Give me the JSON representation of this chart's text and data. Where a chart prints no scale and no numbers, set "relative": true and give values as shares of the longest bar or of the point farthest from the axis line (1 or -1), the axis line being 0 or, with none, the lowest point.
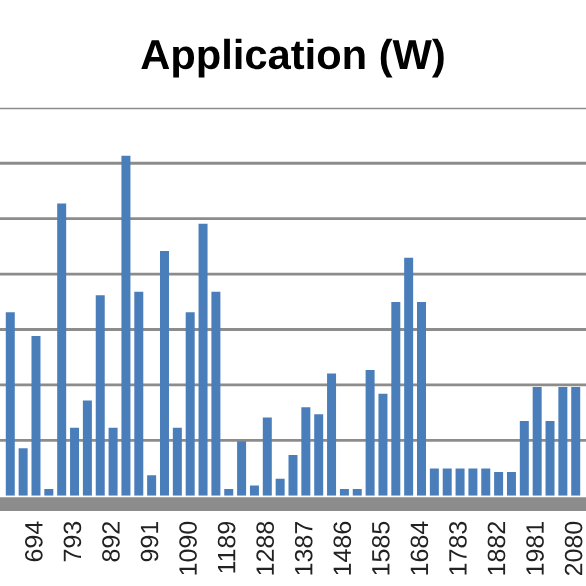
{
  "chart_data": {
    "type": "bar",
    "title": "Application (W)",
    "relative": true,
    "grid": "y",
    "tick_labels": "x",
    "color": "#4a7ebb",
    "categories": [
      null,
      null,
      "694",
      null,
      null,
      "793",
      null,
      null,
      "892",
      null,
      null,
      "991",
      null,
      null,
      "1090",
      null,
      null,
      "1189",
      null,
      null,
      "1288",
      null,
      null,
      "1387",
      null,
      null,
      "1486",
      null,
      null,
      "1585",
      null,
      null,
      "1684",
      null,
      null,
      "1783",
      null,
      null,
      "1882",
      null,
      null,
      "1981",
      null,
      null,
      "2080"
    ],
    "values": [
      0.54,
      0.14,
      0.47,
      0.02,
      0.86,
      0.2,
      0.28,
      0.59,
      0.2,
      1.0,
      0.6,
      0.06,
      0.72,
      0.2,
      0.54,
      0.8,
      0.6,
      0.02,
      0.16,
      0.03,
      0.23,
      0.05,
      0.12,
      0.26,
      0.24,
      0.36,
      0.02,
      0.02,
      0.37,
      0.3,
      0.57,
      0.7,
      0.57,
      0.08,
      0.08,
      0.08,
      0.08,
      0.08,
      0.07,
      0.07,
      0.22,
      0.32,
      0.22,
      0.32,
      0.32
    ]
  }
}
